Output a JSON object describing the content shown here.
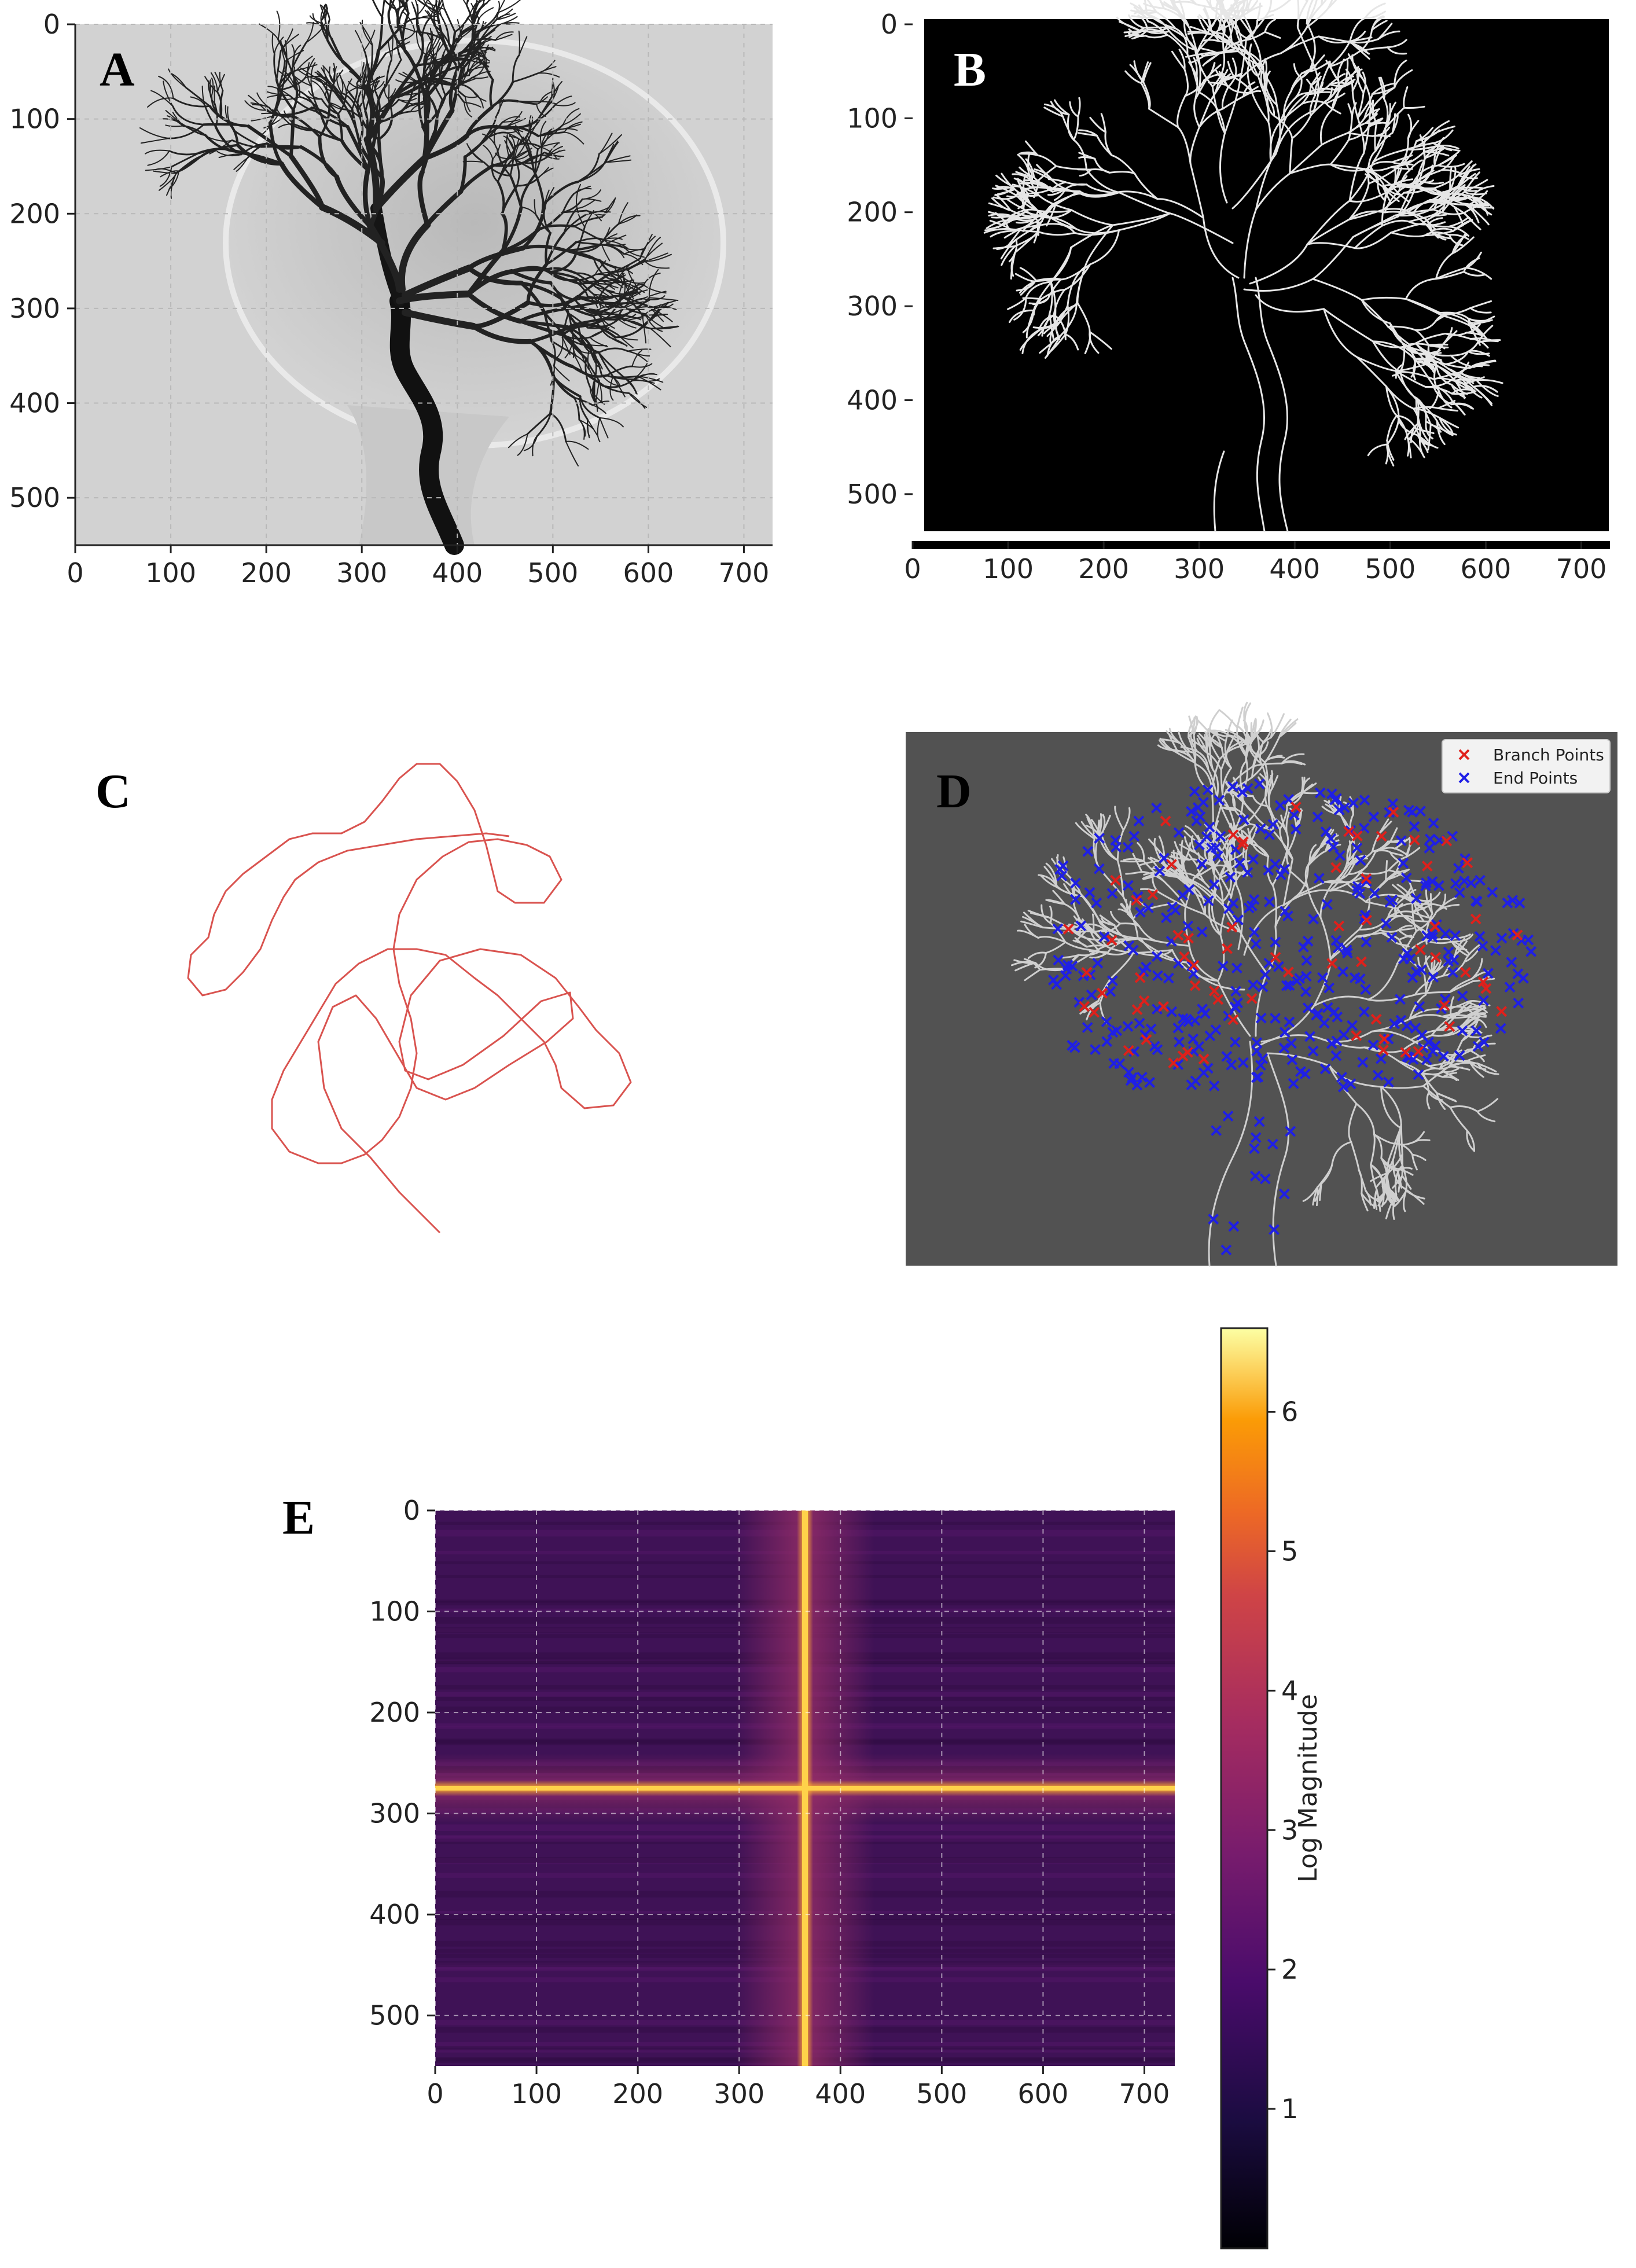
{
  "panels": {
    "a": {
      "letter": "A",
      "title": "",
      "xlabel": "",
      "ylabel": ""
    },
    "b": {
      "letter": "B",
      "title": "",
      "xlabel": "",
      "ylabel": ""
    },
    "c": {
      "letter": "C"
    },
    "d": {
      "letter": "D",
      "legend": {
        "branch": "Branch Points",
        "end": "End Points"
      }
    },
    "e": {
      "letter": "E"
    }
  },
  "colors": {
    "branch_points": "#e0201b",
    "end_points": "#1f1fe6",
    "skeleton": "#d9534f",
    "panel_d_background": "#525252"
  },
  "chart_data": [
    {
      "id": "A",
      "type": "heatmap",
      "description_free": true,
      "x_ticks": [
        0,
        100,
        200,
        300,
        400,
        500,
        600,
        700
      ],
      "y_ticks": [
        0,
        100,
        200,
        300,
        400,
        500
      ],
      "xlim": [
        0,
        730
      ],
      "ylim": [
        550,
        0
      ],
      "grid": true
    },
    {
      "id": "B",
      "type": "heatmap",
      "x_ticks": [
        0,
        100,
        200,
        300,
        400,
        500,
        600,
        700
      ],
      "y_ticks": [
        0,
        100,
        200,
        300,
        400,
        500
      ],
      "xlim": [
        0,
        730
      ],
      "ylim": [
        550,
        0
      ],
      "grid": false
    },
    {
      "id": "D",
      "type": "scatter",
      "series": [
        {
          "name": "Branch Points",
          "marker": "x",
          "color": "#e0201b"
        },
        {
          "name": "End Points",
          "marker": "x",
          "color": "#1f1fe6"
        }
      ],
      "legend": "top-right"
    },
    {
      "id": "E",
      "type": "heatmap",
      "x_ticks": [
        0,
        100,
        200,
        300,
        400,
        500,
        600,
        700
      ],
      "y_ticks": [
        0,
        100,
        200,
        300,
        400,
        500
      ],
      "xlim": [
        0,
        730
      ],
      "ylim": [
        550,
        0
      ],
      "grid": true,
      "colorbar": {
        "label": "Log Magnitude",
        "ticks": [
          1,
          2,
          3,
          4,
          5,
          6
        ],
        "range": [
          0,
          6.6
        ],
        "colormap": "inferno"
      },
      "peak_row": 275,
      "peak_col": 365
    }
  ]
}
